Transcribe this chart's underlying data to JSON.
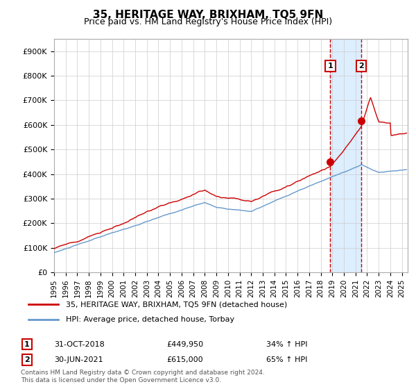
{
  "title": "35, HERITAGE WAY, BRIXHAM, TQ5 9FN",
  "subtitle": "Price paid vs. HM Land Registry's House Price Index (HPI)",
  "ylabel_ticks": [
    "£0",
    "£100K",
    "£200K",
    "£300K",
    "£400K",
    "£500K",
    "£600K",
    "£700K",
    "£800K",
    "£900K"
  ],
  "ytick_values": [
    0,
    100000,
    200000,
    300000,
    400000,
    500000,
    600000,
    700000,
    800000,
    900000
  ],
  "ylim": [
    0,
    950000
  ],
  "xlim_start": 1995.0,
  "xlim_end": 2025.5,
  "red_line_color": "#cc0000",
  "blue_line_color": "#6699cc",
  "marker1_date": 2018.83,
  "marker1_value": 449950,
  "marker1_label": "1",
  "marker2_date": 2021.5,
  "marker2_value": 615000,
  "marker2_label": "2",
  "shade_color": "#ddeeff",
  "vline_color": "#cc0000",
  "legend_label_red": "35, HERITAGE WAY, BRIXHAM, TQ5 9FN (detached house)",
  "legend_label_blue": "HPI: Average price, detached house, Torbay",
  "table_row1": [
    "1",
    "31-OCT-2018",
    "£449,950",
    "34% ↑ HPI"
  ],
  "table_row2": [
    "2",
    "30-JUN-2021",
    "£615,000",
    "65% ↑ HPI"
  ],
  "footer": "Contains HM Land Registry data © Crown copyright and database right 2024.\nThis data is licensed under the Open Government Licence v3.0.",
  "background_color": "#ffffff",
  "grid_color": "#cccccc"
}
